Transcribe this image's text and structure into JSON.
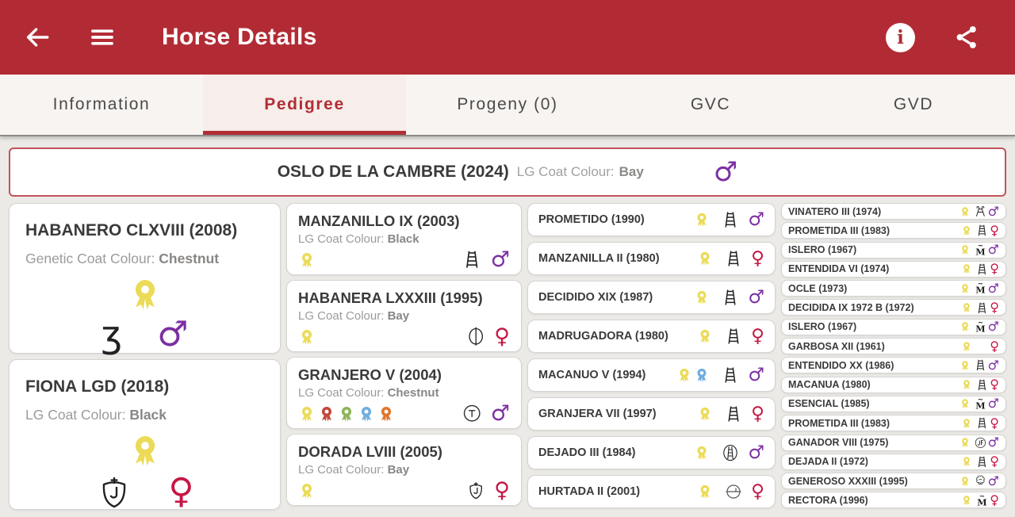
{
  "colors": {
    "header_bg": "#B22B34",
    "accent": "#B02E35",
    "male": "#7B2FA2",
    "female": "#C51844",
    "awards": {
      "yellow": "#EBDB58",
      "red": "#C4473C",
      "green": "#8CB456",
      "blue": "#6FAEE0",
      "orange": "#E0762F"
    }
  },
  "symbols": {
    "male": "♂",
    "female": "♀"
  },
  "header": {
    "title": "Horse Details"
  },
  "tabs": [
    {
      "label": "Information",
      "active": false
    },
    {
      "label": "Pedigree",
      "active": true
    },
    {
      "label": "Progeny (0)",
      "active": false
    },
    {
      "label": "GVC",
      "active": false
    },
    {
      "label": "GVD",
      "active": false
    }
  ],
  "subject": {
    "name": "OSLO DE LA CAMBRE (2024)",
    "coat_label": "LG Coat Colour:",
    "coat_value": "Bay",
    "gender": "male"
  },
  "pedigree": {
    "gen1": [
      {
        "name": "HABANERO CLXVIII (2008)",
        "coat_label": "Genetic Coat Colour:",
        "coat_value": "Chestnut",
        "awards": [
          "yellow"
        ],
        "brand": "squiggle",
        "gender": "male"
      },
      {
        "name": "FIONA LGD (2018)",
        "coat_label": "LG Coat Colour:",
        "coat_value": "Black",
        "awards": [
          "yellow"
        ],
        "brand": "shield",
        "gender": "female"
      }
    ],
    "gen2": [
      {
        "name": "MANZANILLO IX (2003)",
        "coat_label": "LG Coat Colour:",
        "coat_value": "Black",
        "awards": [
          "yellow"
        ],
        "brand": "ladder",
        "gender": "male"
      },
      {
        "name": "HABANERA LXXXIII (1995)",
        "coat_label": "LG Coat Colour:",
        "coat_value": "Bay",
        "awards": [
          "yellow"
        ],
        "brand": "circle-bar",
        "gender": "female"
      },
      {
        "name": "GRANJERO V (2004)",
        "coat_label": "LG Coat Colour:",
        "coat_value": "Chestnut",
        "awards": [
          "yellow",
          "red",
          "green",
          "blue",
          "orange"
        ],
        "brand": "circle-t",
        "gender": "male"
      },
      {
        "name": "DORADA LVIII (2005)",
        "coat_label": "LG Coat Colour:",
        "coat_value": "Bay",
        "awards": [
          "yellow"
        ],
        "brand": "shield",
        "gender": "female"
      }
    ],
    "gen3": [
      {
        "name": "PROMETIDO (1990)",
        "awards": [
          "yellow"
        ],
        "brand": "ladder",
        "gender": "male"
      },
      {
        "name": "MANZANILLA II (1980)",
        "awards": [
          "yellow"
        ],
        "brand": "ladder",
        "gender": "female"
      },
      {
        "name": "DECIDIDO XIX (1987)",
        "awards": [
          "yellow"
        ],
        "brand": "ladder",
        "gender": "male"
      },
      {
        "name": "MADRUGADORA (1980)",
        "awards": [
          "yellow"
        ],
        "brand": "ladder",
        "gender": "female"
      },
      {
        "name": "MACANUO V (1994)",
        "awards": [
          "yellow",
          "blue"
        ],
        "brand": "ladder",
        "gender": "male"
      },
      {
        "name": "GRANJERA VII (1997)",
        "awards": [
          "yellow"
        ],
        "brand": "ladder",
        "gender": "female"
      },
      {
        "name": "DEJADO III (1984)",
        "awards": [
          "yellow"
        ],
        "brand": "circle-ladder",
        "gender": "male"
      },
      {
        "name": "HURTADA II (2001)",
        "awards": [
          "yellow"
        ],
        "brand": "circle-dial",
        "gender": "female"
      }
    ],
    "gen4": [
      {
        "name": "VINATERO III (1974)",
        "awards": [
          "yellow"
        ],
        "brand": "trident",
        "gender": "male"
      },
      {
        "name": "PROMETIDA III (1983)",
        "awards": [
          "yellow"
        ],
        "brand": "ladder",
        "gender": "female"
      },
      {
        "name": "ISLERO (1967)",
        "awards": [
          "yellow"
        ],
        "brand": "m-tilde",
        "gender": "male"
      },
      {
        "name": "ENTENDIDA VI (1974)",
        "awards": [
          "yellow"
        ],
        "brand": "ladder",
        "gender": "female"
      },
      {
        "name": "OCLE (1973)",
        "awards": [
          "yellow"
        ],
        "brand": "m-tilde",
        "gender": "male"
      },
      {
        "name": "DECIDIDA IX 1972 B (1972)",
        "awards": [
          "yellow"
        ],
        "brand": "ladder",
        "gender": "female"
      },
      {
        "name": "ISLERO (1967)",
        "awards": [
          "yellow"
        ],
        "brand": "m-tilde",
        "gender": "male"
      },
      {
        "name": "GARBOSA XII (1961)",
        "awards": [
          "yellow"
        ],
        "brand": "none",
        "gender": "female"
      },
      {
        "name": "ENTENDIDO XX (1986)",
        "awards": [
          "yellow"
        ],
        "brand": "ladder",
        "gender": "male"
      },
      {
        "name": "MACANUA (1980)",
        "awards": [
          "yellow"
        ],
        "brand": "ladder",
        "gender": "female"
      },
      {
        "name": "ESENCIAL (1985)",
        "awards": [
          "yellow"
        ],
        "brand": "m-tilde",
        "gender": "male"
      },
      {
        "name": "PROMETIDA III (1983)",
        "awards": [
          "yellow"
        ],
        "brand": "ladder",
        "gender": "female"
      },
      {
        "name": "GANADOR VIII (1975)",
        "awards": [
          "yellow"
        ],
        "brand": "circle-jf",
        "gender": "male"
      },
      {
        "name": "DEJADA II (1972)",
        "awards": [
          "yellow"
        ],
        "brand": "ladder",
        "gender": "female"
      },
      {
        "name": "GENEROSO XXXIII (1995)",
        "awards": [
          "yellow"
        ],
        "brand": "ornate",
        "gender": "male"
      },
      {
        "name": "RECTORA (1996)",
        "awards": [
          "yellow"
        ],
        "brand": "m-tilde",
        "gender": "female"
      }
    ]
  }
}
